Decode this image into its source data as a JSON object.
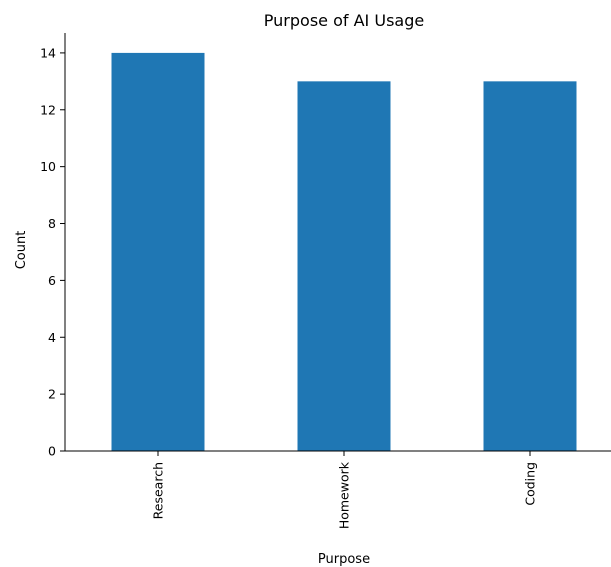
{
  "chart_data": {
    "type": "bar",
    "title": "Purpose of AI Usage",
    "xlabel": "Purpose",
    "ylabel": "Count",
    "categories": [
      "Research",
      "Homework",
      "Coding"
    ],
    "values": [
      14,
      13,
      13
    ],
    "ylim": [
      0,
      14.7
    ],
    "yticks": [
      0,
      2,
      4,
      6,
      8,
      10,
      12,
      14
    ],
    "x_tick_rotation": "vertical",
    "grid": false,
    "legend": "none",
    "bar_color": "#1f77b4"
  }
}
